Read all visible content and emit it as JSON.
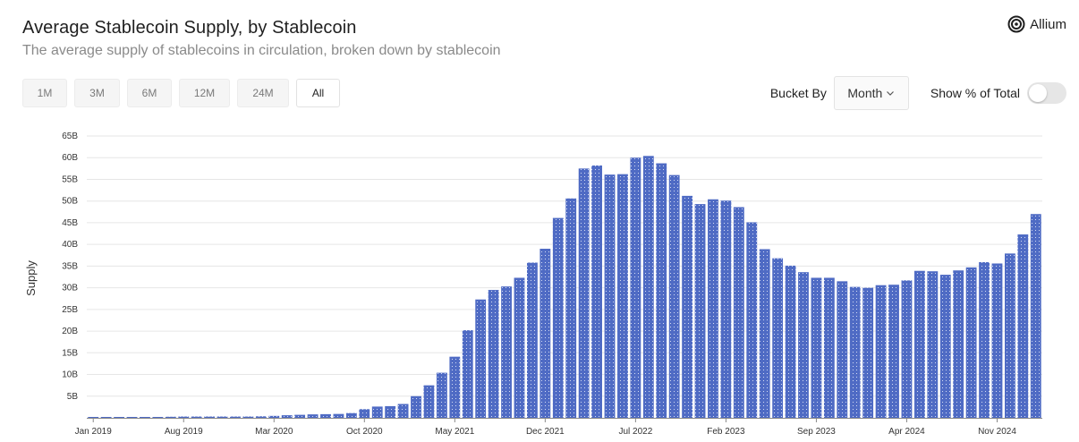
{
  "header": {
    "title": "Average Stablecoin Supply, by Stablecoin",
    "subtitle": "The average supply of stablecoins in circulation, broken down by stablecoin",
    "logo_text": "Allium"
  },
  "range_tabs": [
    {
      "label": "1M",
      "active": false
    },
    {
      "label": "3M",
      "active": false
    },
    {
      "label": "6M",
      "active": false
    },
    {
      "label": "12M",
      "active": false
    },
    {
      "label": "24M",
      "active": false
    },
    {
      "label": "All",
      "active": true
    }
  ],
  "controls": {
    "bucket_label": "Bucket By",
    "bucket_value": "Month",
    "show_pct_label": "Show % of Total",
    "show_pct_on": false
  },
  "colors": {
    "bar": "#5470c6",
    "grid": "#e6e6e6",
    "toggle_off": "#e6e6e6"
  },
  "chart_data": {
    "type": "bar",
    "ylabel": "Supply",
    "xlabel": "",
    "ylim": [
      0,
      65
    ],
    "y_unit": "B",
    "y_ticks": [
      "5B",
      "10B",
      "15B",
      "20B",
      "25B",
      "30B",
      "35B",
      "40B",
      "45B",
      "50B",
      "55B",
      "60B",
      "65B"
    ],
    "x_tick_labels": [
      {
        "label": "Jan 2019",
        "index": 0
      },
      {
        "label": "Aug 2019",
        "index": 7
      },
      {
        "label": "Mar 2020",
        "index": 14
      },
      {
        "label": "Oct 2020",
        "index": 21
      },
      {
        "label": "May 2021",
        "index": 28
      },
      {
        "label": "Dec 2021",
        "index": 35
      },
      {
        "label": "Jul 2022",
        "index": 42
      },
      {
        "label": "Feb 2023",
        "index": 49
      },
      {
        "label": "Sep 2023",
        "index": 56
      },
      {
        "label": "Apr 2024",
        "index": 63
      },
      {
        "label": "Nov 2024",
        "index": 70
      }
    ],
    "grid": true,
    "legend": "none",
    "series": [
      {
        "values": [
          0.05,
          0.06,
          0.08,
          0.1,
          0.15,
          0.2,
          0.25,
          0.3,
          0.3,
          0.3,
          0.3,
          0.3,
          0.3,
          0.35,
          0.45,
          0.6,
          0.7,
          0.8,
          0.85,
          0.9,
          1.1,
          2.0,
          2.6,
          2.7,
          3.2,
          5.0,
          7.5,
          10.4,
          14.1,
          20.2,
          27.3,
          29.5,
          30.3,
          32.3,
          35.8,
          39.0,
          46.1,
          50.6,
          57.5,
          58.2,
          56.1,
          56.2,
          60.0,
          60.4,
          58.7,
          56.0,
          51.2,
          49.3,
          50.4,
          50.1,
          48.6,
          45.1,
          38.9,
          36.8,
          35.1,
          33.6,
          32.3,
          32.3,
          31.5,
          30.2,
          30.0,
          30.6,
          30.7,
          31.7,
          33.9,
          33.8,
          33.0,
          34.0,
          34.7,
          35.9,
          35.6,
          37.9,
          42.3,
          47.0
        ]
      }
    ]
  }
}
